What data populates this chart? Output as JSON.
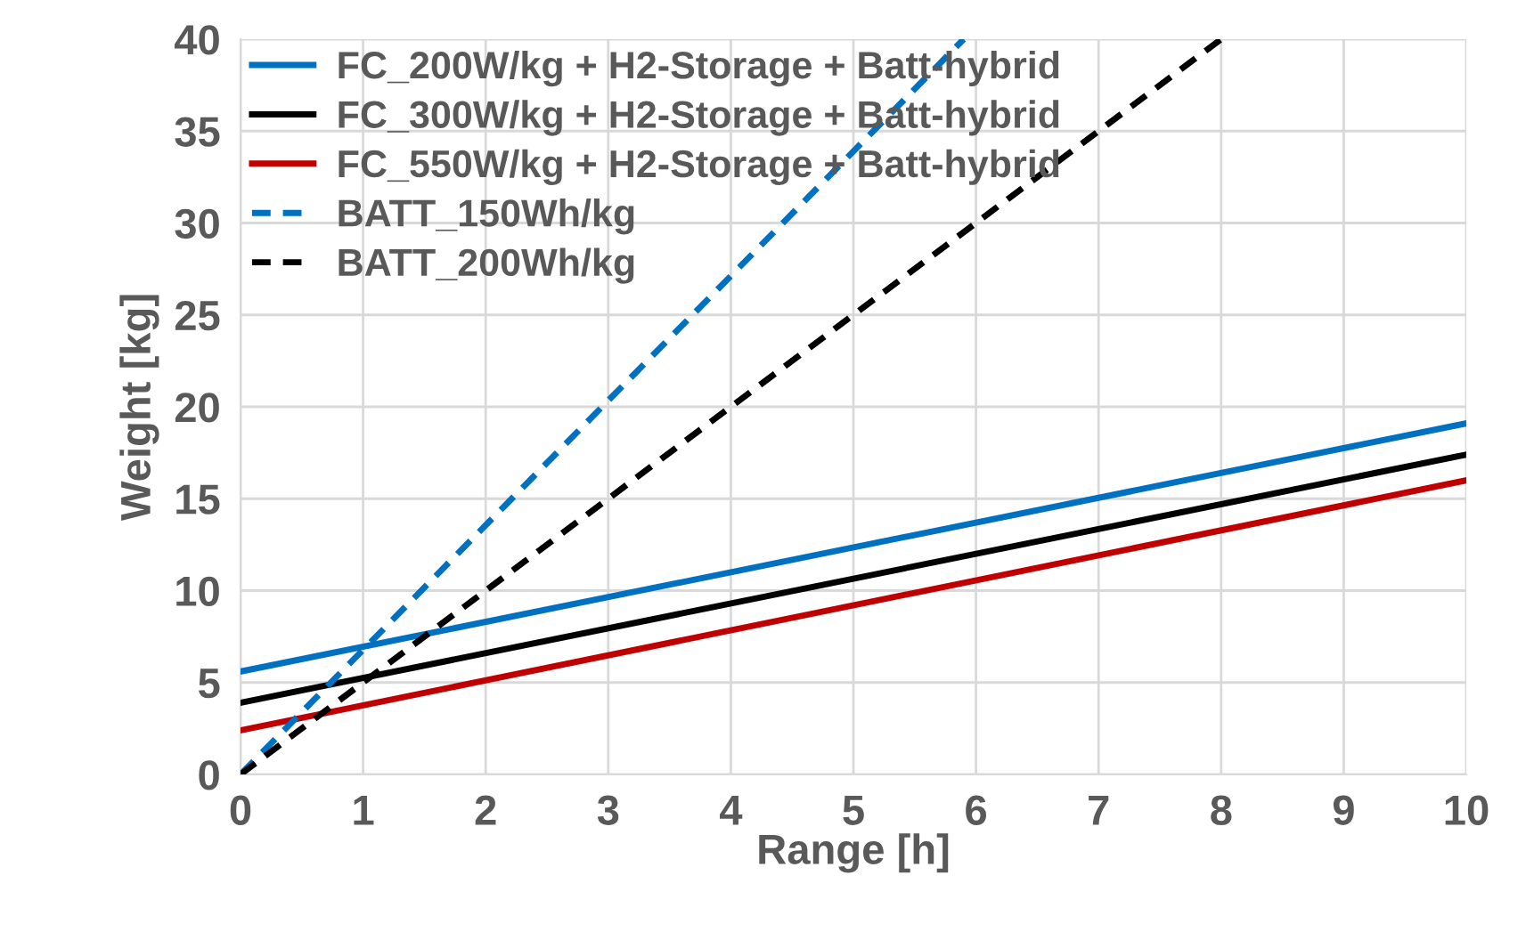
{
  "chart_data": {
    "type": "line",
    "xlabel": "Range [h]",
    "ylabel": "Weight [kg]",
    "x": [
      0,
      10
    ],
    "series": [
      {
        "name": "FC_200W/kg + H2-Storage + Batt-hybrid",
        "color": "#0070c0",
        "values": [
          5.6,
          19.1
        ],
        "line_style": "solid"
      },
      {
        "name": "FC_300W/kg + H2-Storage + Batt-hybrid",
        "color": "#000000",
        "values": [
          3.9,
          17.4
        ],
        "line_style": "solid"
      },
      {
        "name": "FC_550W/kg + H2-Storage + Batt-hybrid",
        "color": "#c00000",
        "values": [
          2.4,
          16.0
        ],
        "line_style": "solid"
      },
      {
        "name": "BATT_150Wh/kg",
        "color": "#0070c0",
        "x": [
          0,
          5.9
        ],
        "values": [
          0,
          40
        ],
        "line_style": "dashed"
      },
      {
        "name": "BATT_200Wh/kg",
        "color": "#000000",
        "x": [
          0,
          8.0
        ],
        "values": [
          0,
          40
        ],
        "line_style": "dashed"
      }
    ],
    "xlim": [
      0,
      10
    ],
    "xticks": [
      0,
      1,
      2,
      3,
      4,
      5,
      6,
      7,
      8,
      9,
      10
    ],
    "ylim": [
      0,
      40
    ],
    "yticks": [
      0,
      5,
      10,
      15,
      20,
      25,
      30,
      35,
      40
    ],
    "grid": true,
    "legend": "top left"
  }
}
